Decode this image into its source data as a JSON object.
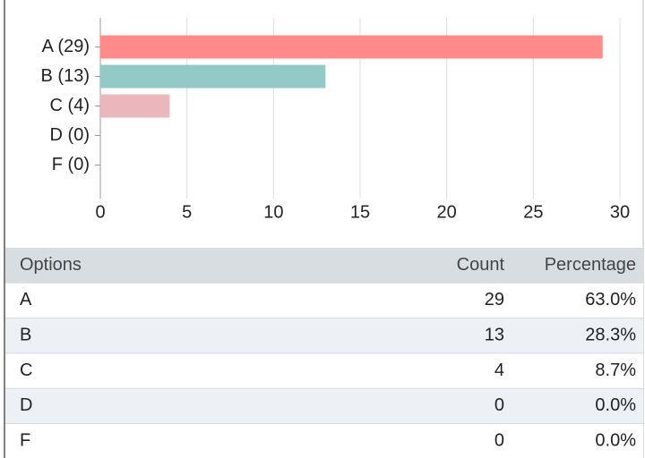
{
  "chart_data": {
    "type": "bar",
    "horizontal": true,
    "categories": [
      "A (29)",
      "B (13)",
      "C (4)",
      "D (0)",
      "F (0)"
    ],
    "values": [
      29,
      13,
      4,
      0,
      0
    ],
    "colors": [
      "#ff8a8a",
      "#93c9c6",
      "#ebb7bd"
    ],
    "xlim": [
      0,
      30
    ],
    "xticks": [
      0,
      5,
      10,
      15,
      20,
      25,
      30
    ],
    "grid": true
  },
  "table": {
    "columns": [
      "Options",
      "Count",
      "Percentage"
    ],
    "rows": [
      [
        "A",
        "29",
        "63.0%"
      ],
      [
        "B",
        "13",
        "28.3%"
      ],
      [
        "C",
        "4",
        "8.7%"
      ],
      [
        "D",
        "0",
        "0.0%"
      ],
      [
        "F",
        "0",
        "0.0%"
      ]
    ]
  }
}
